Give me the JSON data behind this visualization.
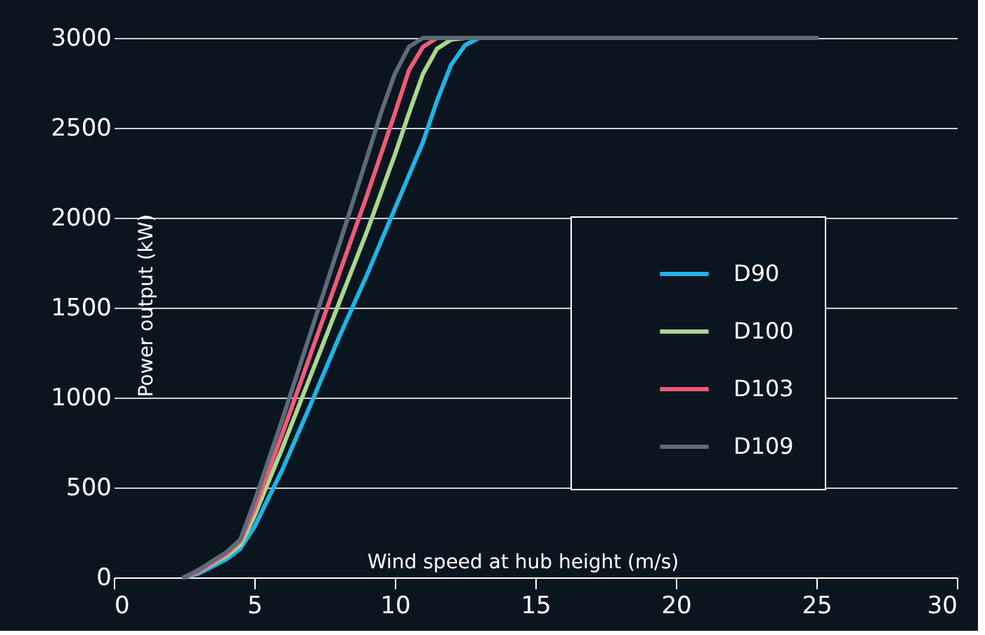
{
  "chart_data": {
    "type": "line",
    "xlabel": "Wind speed at hub height (m/s)",
    "ylabel": "Power output (kW)",
    "xlim": [
      0,
      30
    ],
    "xticks": [
      0,
      5,
      10,
      15,
      20,
      25,
      30
    ],
    "ylim": [
      0,
      3000
    ],
    "yticks": [
      0,
      500,
      1000,
      1500,
      2000,
      2500,
      3000
    ],
    "grid": "y",
    "legend": "bottom right",
    "marker": "none",
    "line_style": "solid",
    "series": [
      {
        "name": "D90",
        "color": "#1fb4e6",
        "x": [
          2.5,
          3,
          4,
          4.5,
          5,
          6,
          7,
          8,
          9,
          10,
          11,
          11.5,
          12,
          12.5,
          13,
          25
        ],
        "values": [
          0,
          20,
          100,
          160,
          280,
          600,
          960,
          1330,
          1680,
          2050,
          2420,
          2650,
          2850,
          2960,
          3000,
          3000
        ]
      },
      {
        "name": "D100",
        "color": "#a8d88c",
        "x": [
          2.5,
          3,
          4,
          4.5,
          5,
          6,
          7,
          8,
          9,
          10,
          10.5,
          11,
          11.5,
          12,
          12.5,
          25
        ],
        "values": [
          0,
          30,
          120,
          180,
          340,
          720,
          1120,
          1520,
          1920,
          2350,
          2580,
          2800,
          2940,
          2990,
          3000,
          3000
        ]
      },
      {
        "name": "D103",
        "color": "#ef5a78",
        "x": [
          2.5,
          3,
          4,
          4.5,
          5,
          6,
          7,
          8,
          9,
          10,
          10.5,
          11,
          11.5,
          25
        ],
        "values": [
          0,
          30,
          130,
          200,
          380,
          800,
          1240,
          1680,
          2120,
          2580,
          2820,
          2950,
          3000,
          3000
        ]
      },
      {
        "name": "D109",
        "color": "#5e6b78",
        "x": [
          2.5,
          3,
          4,
          4.5,
          5,
          6,
          7,
          8,
          9,
          9.5,
          10,
          10.5,
          11,
          25
        ],
        "values": [
          0,
          40,
          140,
          210,
          420,
          880,
          1360,
          1840,
          2330,
          2580,
          2800,
          2950,
          3000,
          3000
        ]
      }
    ]
  }
}
